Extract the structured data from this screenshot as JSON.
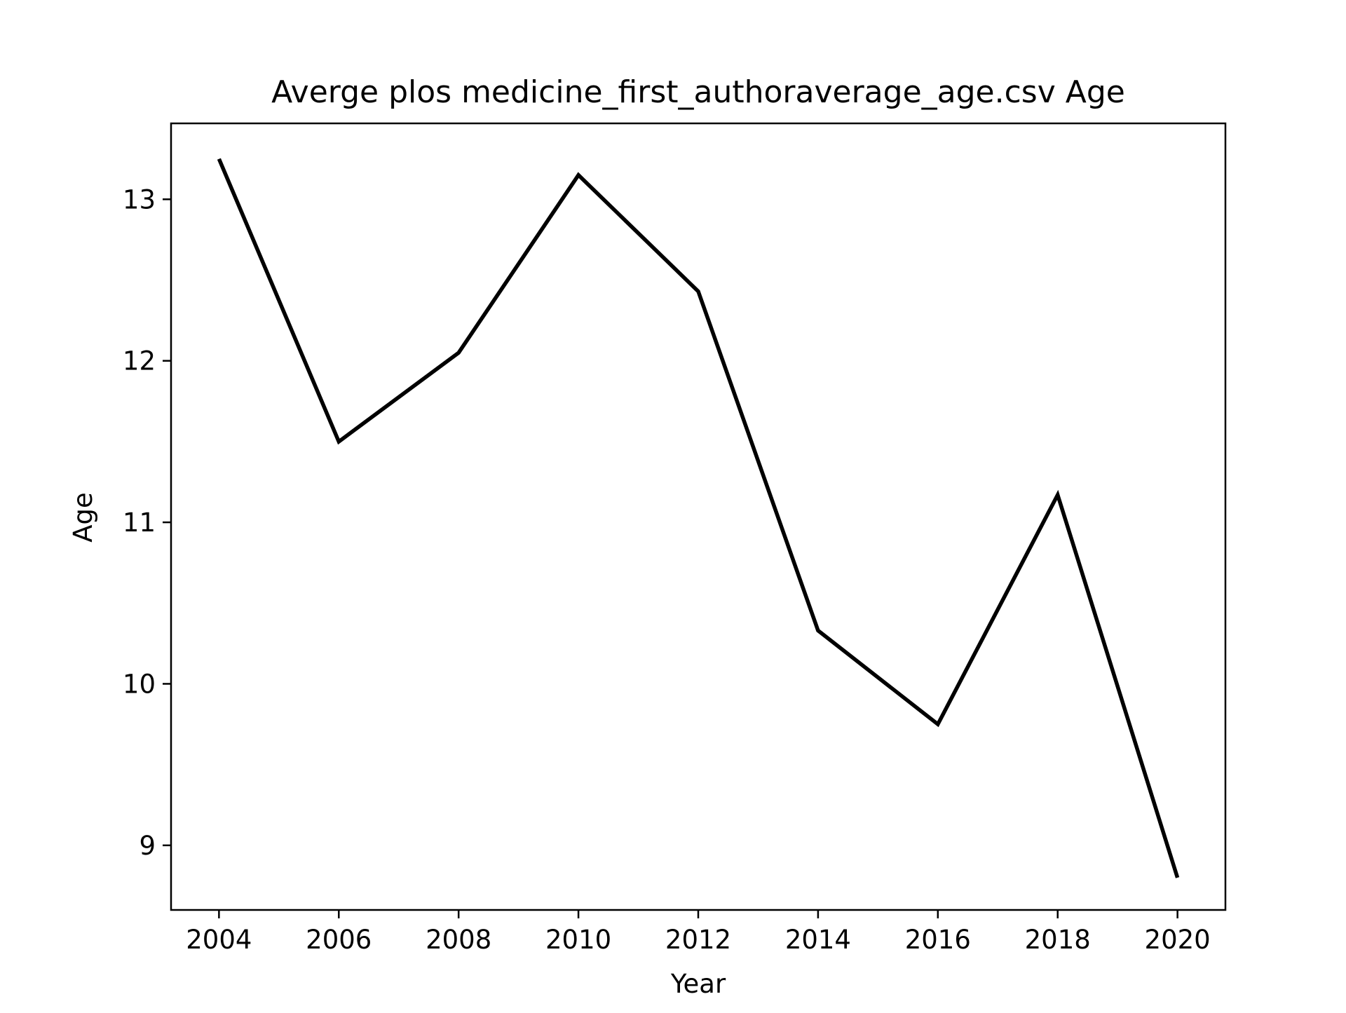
{
  "chart_data": {
    "type": "line",
    "title": "Averge plos medicine_first_authoraverage_age.csv Age",
    "xlabel": "Year",
    "ylabel": "Age",
    "xlim": [
      2003.2,
      2020.8
    ],
    "ylim": [
      8.6,
      13.47
    ],
    "x_ticks": [
      2004,
      2006,
      2008,
      2010,
      2012,
      2014,
      2016,
      2018,
      2020
    ],
    "y_ticks": [
      9,
      10,
      11,
      12,
      13
    ],
    "grid": false,
    "line_color": "#000000",
    "series": [
      {
        "x": [
          2004,
          2006,
          2008,
          2010,
          2012,
          2014,
          2016,
          2018,
          2020
        ],
        "values": [
          13.25,
          11.5,
          12.05,
          13.15,
          12.43,
          10.33,
          9.75,
          11.17,
          8.8
        ]
      }
    ]
  }
}
